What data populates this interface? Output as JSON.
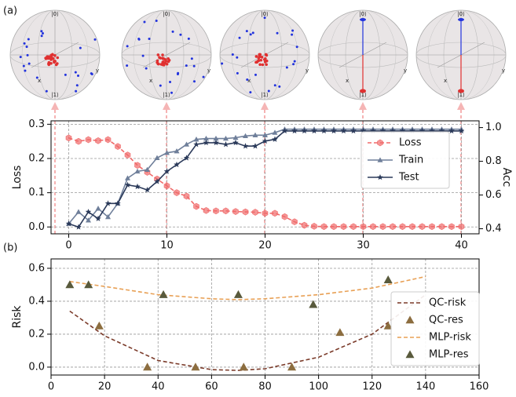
{
  "panel_labels": [
    "(a)",
    "(b)"
  ],
  "bloch": {
    "ket0": "|0⟩",
    "ket1": "|1⟩",
    "x": "x",
    "y": "y"
  },
  "chart_data": [
    {
      "type": "line",
      "ylabel": "Loss",
      "y2label": "Acc",
      "x": [
        0,
        1,
        2,
        3,
        4,
        5,
        6,
        7,
        8,
        9,
        10,
        11,
        12,
        13,
        14,
        15,
        16,
        17,
        18,
        19,
        20,
        21,
        22,
        23,
        24,
        25,
        26,
        27,
        28,
        29,
        30,
        31,
        32,
        33,
        34,
        35,
        36,
        37,
        38,
        39,
        40
      ],
      "xlim": [
        -1.8,
        41.8
      ],
      "xticks": [
        0,
        10,
        20,
        30,
        40
      ],
      "ylim": [
        -0.02,
        0.31
      ],
      "yticks": [
        {
          "value": 0,
          "label": "0.0"
        },
        0.1,
        0.2,
        0.3
      ],
      "y2lim": [
        0.37,
        1.04
      ],
      "y2ticks": [
        0.4,
        0.6,
        0.8,
        {
          "value": 1,
          "label": "1.0"
        }
      ],
      "grid": true,
      "legend": "upper right",
      "series": [
        {
          "name": "Loss",
          "color": "#f06a6a",
          "marker": "hexagon",
          "dash": true,
          "values": [
            0.26,
            0.25,
            0.255,
            0.252,
            0.255,
            0.235,
            0.21,
            0.18,
            0.16,
            0.14,
            0.12,
            0.1,
            0.09,
            0.06,
            0.048,
            0.047,
            0.047,
            0.045,
            0.044,
            0.043,
            0.04,
            0.04,
            0.03,
            0.015,
            0.005,
            0.002,
            0.001,
            0.001,
            0.001,
            0.001,
            0.001,
            0.001,
            0.001,
            0.001,
            0.001,
            0.001,
            0.001,
            0.001,
            0.001,
            0.001,
            0.001
          ]
        },
        {
          "name": "Train",
          "color": "#6f7f9a",
          "marker": "triangle",
          "axis": "y2",
          "values": [
            0.43,
            0.5,
            0.45,
            0.52,
            0.47,
            0.55,
            0.7,
            0.74,
            0.75,
            0.82,
            0.85,
            0.86,
            0.9,
            0.93,
            0.935,
            0.935,
            0.935,
            0.94,
            0.95,
            0.955,
            0.955,
            0.97,
            0.99,
            0.99,
            0.99,
            0.99,
            0.99,
            0.99,
            0.99,
            0.99,
            0.99,
            0.99,
            0.99,
            0.99,
            0.99,
            0.99,
            0.99,
            0.99,
            0.99,
            0.99,
            0.99
          ]
        },
        {
          "name": "Test",
          "color": "#2b3a5a",
          "marker": "star",
          "axis": "y2",
          "values": [
            0.43,
            0.41,
            0.5,
            0.46,
            0.55,
            0.55,
            0.66,
            0.65,
            0.63,
            0.68,
            0.74,
            0.78,
            0.82,
            0.9,
            0.91,
            0.91,
            0.9,
            0.91,
            0.89,
            0.89,
            0.92,
            0.93,
            0.98,
            0.98,
            0.98,
            0.98,
            0.98,
            0.98,
            0.98,
            0.98,
            0.98,
            0.98,
            0.98,
            0.98,
            0.98,
            0.98,
            0.98,
            0.98,
            0.98,
            0.98,
            0.98
          ]
        }
      ]
    },
    {
      "type": "line",
      "ylabel": "Risk",
      "xlim": [
        0,
        160
      ],
      "xticks": [
        0,
        20,
        40,
        60,
        80,
        100,
        120,
        140,
        160
      ],
      "ylim": [
        -0.048,
        0.657
      ],
      "yticks": [
        {
          "value": 0,
          "label": "0.0"
        },
        0.2,
        0.4,
        0.6
      ],
      "grid": true,
      "legend": "center right",
      "series": [
        {
          "name": "QC-risk",
          "color": "#7b3b2a",
          "kind": "line",
          "dash": true,
          "x": [
            7,
            20,
            40,
            60,
            70,
            80,
            100,
            120,
            140
          ],
          "values": [
            0.34,
            0.19,
            0.04,
            -0.015,
            -0.02,
            -0.01,
            0.06,
            0.2,
            0.44
          ]
        },
        {
          "name": "QC-res",
          "color": "#8c6d3f",
          "kind": "scatter",
          "x": [
            18,
            36,
            54,
            72,
            90,
            108,
            126
          ],
          "values": [
            0.25,
            0.0,
            0.0,
            0.0,
            0.0,
            0.21,
            0.25
          ]
        },
        {
          "name": "MLP-risk",
          "color": "#e8a055",
          "kind": "line",
          "dash": true,
          "x": [
            7,
            20,
            40,
            60,
            70,
            80,
            100,
            120,
            140
          ],
          "values": [
            0.52,
            0.49,
            0.44,
            0.415,
            0.41,
            0.415,
            0.44,
            0.48,
            0.55
          ]
        },
        {
          "name": "MLP-res",
          "color": "#595a3c",
          "kind": "scatter",
          "x": [
            7,
            14,
            42,
            70,
            98,
            126
          ],
          "values": [
            0.5,
            0.5,
            0.44,
            0.44,
            0.38,
            0.53
          ]
        }
      ]
    }
  ]
}
